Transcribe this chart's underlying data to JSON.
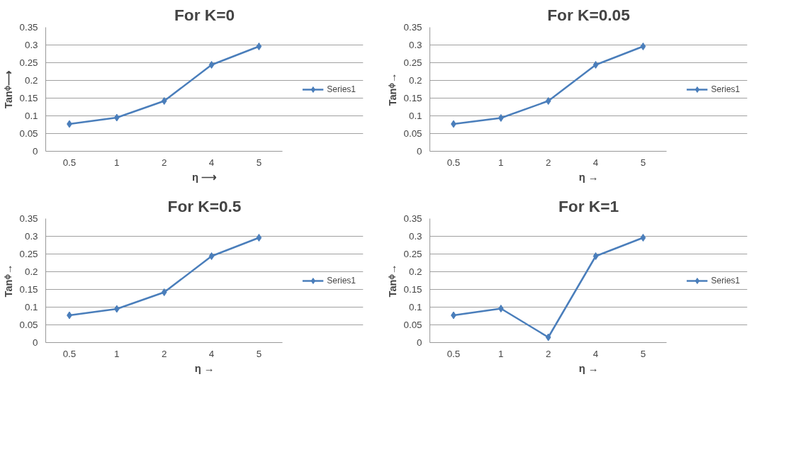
{
  "chart_data": [
    {
      "type": "line",
      "title": "For K=0",
      "xlabel": "η ⟶",
      "ylabel": "Tanᶲ⟶",
      "categories": [
        "0.5",
        "1",
        "2",
        "4",
        "5"
      ],
      "series": [
        {
          "name": "Series1",
          "color": "#4a7ebb",
          "values": [
            0.077,
            0.095,
            0.142,
            0.244,
            0.296
          ]
        }
      ],
      "ylim": [
        0,
        0.35
      ],
      "yticks": [
        0,
        0.05,
        0.1,
        0.15,
        0.2,
        0.25,
        0.3,
        0.35
      ],
      "grid": "y",
      "legend": "right",
      "marker": "diamond",
      "line_style": "solid"
    },
    {
      "type": "line",
      "title": "For K=0.05",
      "xlabel": "η →",
      "ylabel": "Tanᶲ→",
      "categories": [
        "0.5",
        "1",
        "2",
        "4",
        "5"
      ],
      "series": [
        {
          "name": "Series1",
          "color": "#4a7ebb",
          "values": [
            0.077,
            0.094,
            0.142,
            0.244,
            0.296
          ]
        }
      ],
      "ylim": [
        0,
        0.35
      ],
      "yticks": [
        0,
        0.05,
        0.1,
        0.15,
        0.2,
        0.25,
        0.3,
        0.35
      ],
      "grid": "y",
      "legend": "right",
      "marker": "diamond",
      "line_style": "solid"
    },
    {
      "type": "line",
      "title": "For K=0.5",
      "xlabel": "η →",
      "ylabel": "Tanᶲ→",
      "categories": [
        "0.5",
        "1",
        "2",
        "4",
        "5"
      ],
      "series": [
        {
          "name": "Series1",
          "color": "#4a7ebb",
          "values": [
            0.077,
            0.095,
            0.142,
            0.244,
            0.296
          ]
        }
      ],
      "ylim": [
        0,
        0.35
      ],
      "yticks": [
        0,
        0.05,
        0.1,
        0.15,
        0.2,
        0.25,
        0.3,
        0.35
      ],
      "grid": "y",
      "legend": "right",
      "marker": "diamond",
      "line_style": "solid"
    },
    {
      "type": "line",
      "title": "For K=1",
      "xlabel": "η →",
      "ylabel": "Tanᶲ→",
      "categories": [
        "0.5",
        "1",
        "2",
        "4",
        "5"
      ],
      "series": [
        {
          "name": "Series1",
          "color": "#4a7ebb",
          "values": [
            0.077,
            0.096,
            0.015,
            0.244,
            0.296
          ]
        }
      ],
      "ylim": [
        0,
        0.35
      ],
      "yticks": [
        0,
        0.05,
        0.1,
        0.15,
        0.2,
        0.25,
        0.3,
        0.35
      ],
      "grid": "y",
      "legend": "right",
      "marker": "diamond",
      "line_style": "solid"
    }
  ]
}
